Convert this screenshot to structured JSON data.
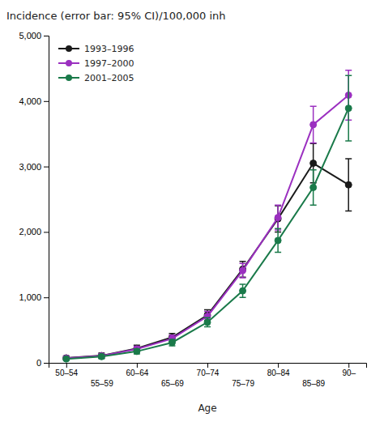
{
  "chart_data": {
    "type": "line",
    "title": "Incidence (error bar: 95% CI)/100,000 inh",
    "xlabel": "Age",
    "categories": [
      "50–54",
      "55–59",
      "60–64",
      "65–69",
      "70–74",
      "75–79",
      "80–84",
      "85–89",
      "90–"
    ],
    "series": [
      {
        "name": "1993–1996",
        "color": "#1a1a1a",
        "marker": "o",
        "values": [
          75,
          110,
          220,
          390,
          730,
          1430,
          2200,
          3050,
          2720
        ],
        "yerr": [
          30,
          40,
          50,
          60,
          80,
          120,
          200,
          300,
          400
        ]
      },
      {
        "name": "1997–2000",
        "color": "#9B30C0",
        "marker": "o",
        "values": [
          70,
          105,
          210,
          370,
          710,
          1410,
          2220,
          3640,
          4090
        ],
        "yerr": [
          25,
          35,
          45,
          55,
          75,
          110,
          190,
          280,
          380
        ]
      },
      {
        "name": "2001–2005",
        "color": "#1a7a4a",
        "marker": "o",
        "values": [
          60,
          95,
          175,
          310,
          620,
          1100,
          1870,
          2680,
          3890
        ],
        "yerr": [
          20,
          30,
          40,
          50,
          70,
          100,
          180,
          270,
          500
        ]
      }
    ],
    "ylim": [
      0,
      5000
    ],
    "yticks": [
      0,
      {
        "value": 1000,
        "label": "1,000"
      },
      {
        "value": 2000,
        "label": "2,000"
      },
      {
        "value": 3000,
        "label": "3,000"
      },
      {
        "value": 4000,
        "label": "4,000"
      },
      {
        "value": 5000,
        "label": "5,000"
      }
    ],
    "grid": false,
    "legend": "upper left"
  }
}
